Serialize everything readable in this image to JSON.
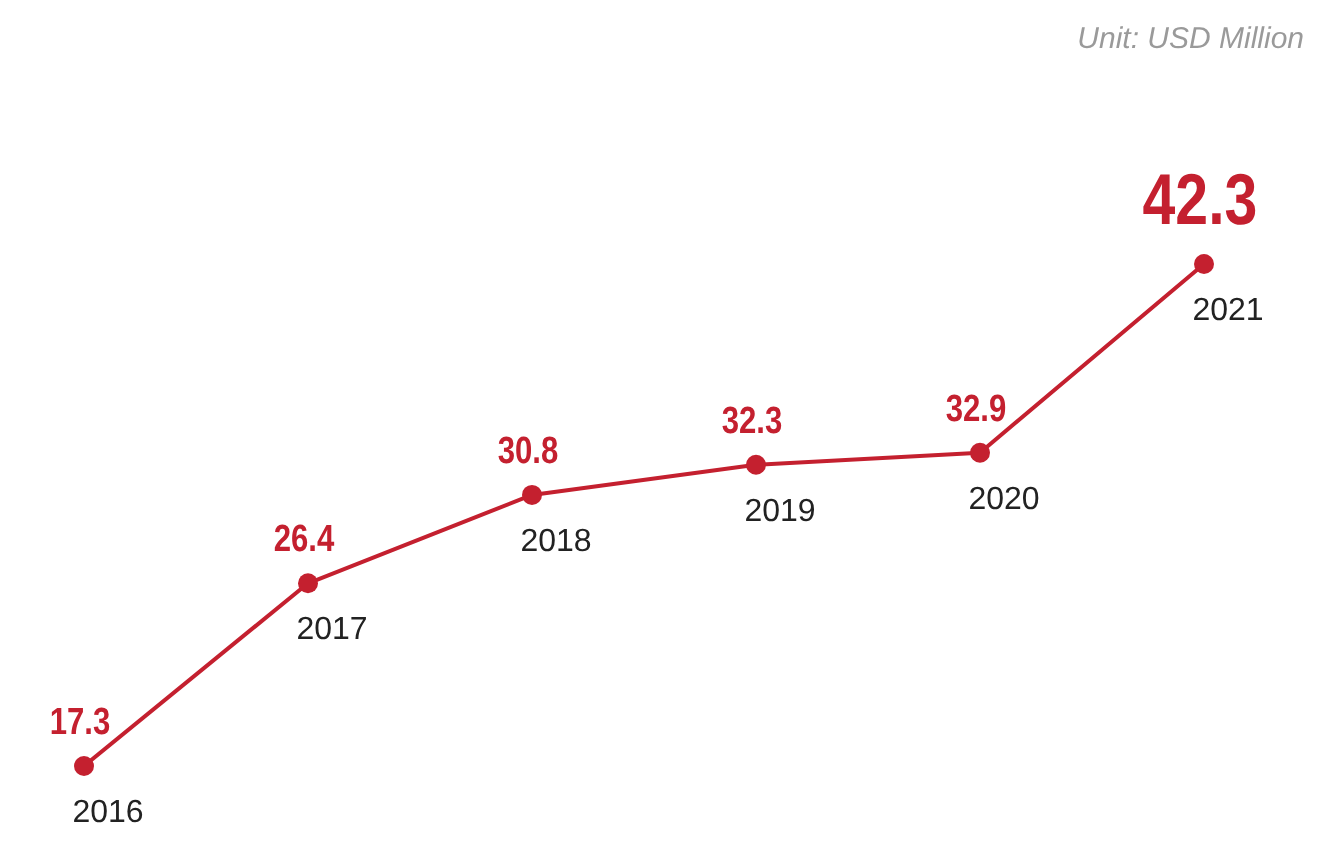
{
  "chart_data": {
    "type": "line",
    "categories": [
      "2016",
      "2017",
      "2018",
      "2019",
      "2020",
      "2021"
    ],
    "series": [
      {
        "color": "#c4202f",
        "values": [
          17.3,
          26.4,
          30.8,
          32.3,
          32.9,
          42.3
        ]
      }
    ],
    "data_labels": true,
    "marker": "circle",
    "annotations": [
      "Unit: USD Million"
    ]
  }
}
